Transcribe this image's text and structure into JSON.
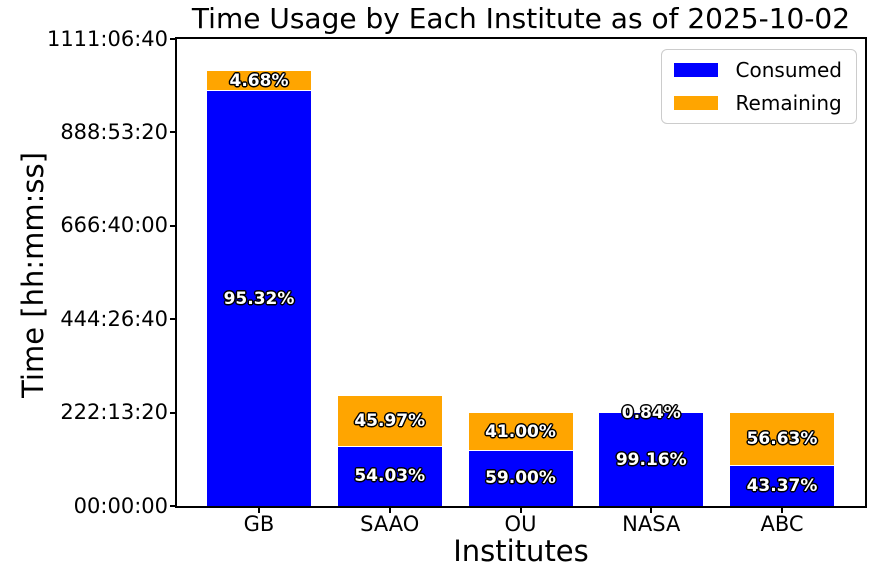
{
  "window": {
    "title": "Time Usage by Each Institute as of 2025-10-02"
  },
  "colors": {
    "consumed": "#0000ff",
    "remaining": "#ffa500",
    "axis": "#000000",
    "legend_border": "#cccccc",
    "background": "#ffffff"
  },
  "chart_data": {
    "type": "bar",
    "stacked": true,
    "title": "Time Usage by Each Institute as of 2025-10-02",
    "xlabel": "Institutes",
    "ylabel": "Time [hh:mm:ss]",
    "categories": [
      "GB",
      "SAAO",
      "OU",
      "NASA",
      "ABC"
    ],
    "series": [
      {
        "name": "Consumed",
        "color": "#0000ff",
        "pct": [
          95.32,
          54.03,
          59.0,
          99.16,
          43.37
        ],
        "labels": [
          "95.32%",
          "54.03%",
          "59.00%",
          "99.16%",
          "43.37%"
        ]
      },
      {
        "name": "Remaining",
        "color": "#ffa500",
        "pct": [
          4.68,
          45.97,
          41.0,
          0.84,
          56.63
        ],
        "labels": [
          "4.68%",
          "45.97%",
          "41.00%",
          "0.84%",
          "56.63%"
        ]
      }
    ],
    "totals_seconds_est": [
      3725000,
      942000,
      800000,
      800000,
      800000
    ],
    "totals_hhmmss_est": [
      "1034:43:20",
      "261:40:00",
      "222:13:20",
      "222:13:20",
      "222:13:20"
    ],
    "y_ticks": [
      "00:00:00",
      "222:13:20",
      "444:26:40",
      "666:40:00",
      "888:53:20",
      "1111:06:40"
    ],
    "ylim_seconds": [
      0,
      4000000
    ],
    "grid": false,
    "legend": {
      "position": "upper right",
      "entries": [
        "Consumed",
        "Remaining"
      ]
    }
  }
}
